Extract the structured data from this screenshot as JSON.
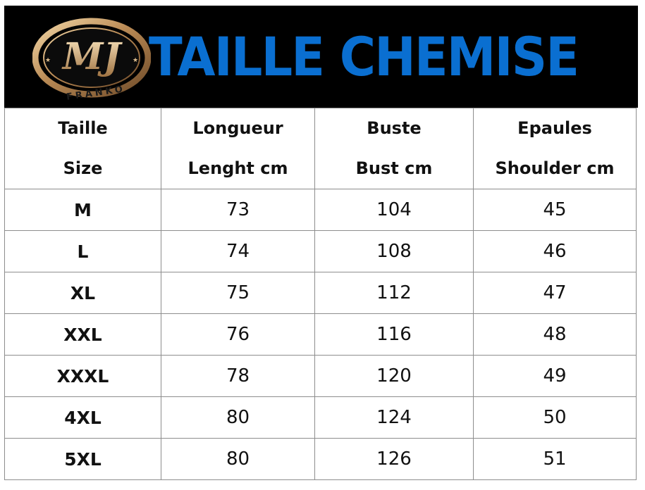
{
  "header": {
    "title": "TAILLE CHEMISE",
    "logo_monogram": "MJ",
    "logo_text": "FRANKO",
    "title_color": "#0a6fd1",
    "background_color": "#000000",
    "logo_icon": "mj-franko-logo-icon"
  },
  "table": {
    "headers": [
      {
        "fr": "Taille",
        "en": "Size"
      },
      {
        "fr": "Longueur",
        "en": "Lenght cm"
      },
      {
        "fr": "Buste",
        "en": "Bust cm"
      },
      {
        "fr": "Epaules",
        "en": "Shoulder cm"
      }
    ],
    "rows": [
      {
        "size": "M",
        "length": "73",
        "bust": "104",
        "shoulder": "45"
      },
      {
        "size": "L",
        "length": "74",
        "bust": "108",
        "shoulder": "46"
      },
      {
        "size": "XL",
        "length": "75",
        "bust": "112",
        "shoulder": "47"
      },
      {
        "size": "XXL",
        "length": "76",
        "bust": "116",
        "shoulder": "48"
      },
      {
        "size": "XXXL",
        "length": "78",
        "bust": "120",
        "shoulder": "49"
      },
      {
        "size": "4XL",
        "length": "80",
        "bust": "124",
        "shoulder": "50"
      },
      {
        "size": "5XL",
        "length": "80",
        "bust": "126",
        "shoulder": "51"
      }
    ]
  }
}
